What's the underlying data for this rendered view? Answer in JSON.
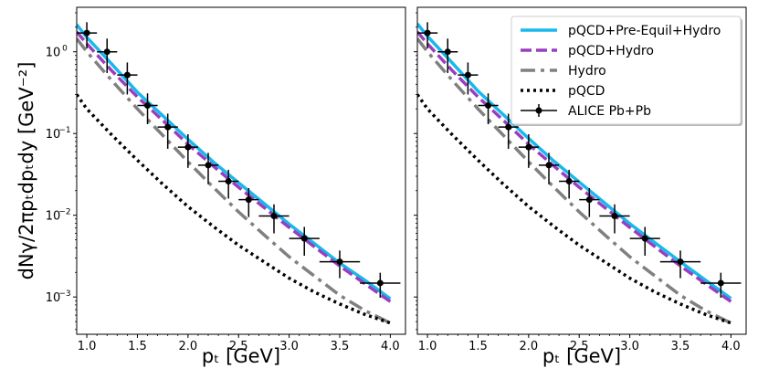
{
  "chart_data": {
    "type": "line",
    "yscale": "log",
    "ylabel": "dNγ/2πpₜdpₜdy [GeV⁻²]",
    "xlabel": "pₜ [GeV]",
    "xlim": [
      0.9,
      4.15
    ],
    "ylim": [
      0.00035,
      3.5
    ],
    "x_ticks": [
      1.0,
      1.5,
      2.0,
      2.5,
      3.0,
      3.5,
      4.0
    ],
    "x_tick_labels": [
      "1.0",
      "1.5",
      "2.0",
      "2.5",
      "3.0",
      "3.5",
      "4.0"
    ],
    "y_ticks": [
      {
        "value": 1,
        "base": "10",
        "exp": "0"
      },
      {
        "value": 0.1,
        "base": "10",
        "exp": "−1"
      },
      {
        "value": 0.01,
        "base": "10",
        "exp": "−2"
      },
      {
        "value": 0.001,
        "base": "10",
        "exp": "−3"
      }
    ],
    "legend_position": "top-right",
    "panels": [
      {
        "name": "left",
        "series": [
          {
            "name": "pQCD+Pre-Equil+Hydro",
            "style": "solid",
            "color": "#19b8ec",
            "x": [
              0.9,
              1.0,
              1.25,
              1.5,
              1.75,
              2.0,
              2.25,
              2.5,
              2.75,
              3.0,
              3.25,
              3.5,
              3.75,
              4.0
            ],
            "y": [
              2.15,
              1.5,
              0.7,
              0.32,
              0.165,
              0.085,
              0.045,
              0.025,
              0.014,
              0.0078,
              0.0045,
              0.0026,
              0.0016,
              0.00095
            ]
          },
          {
            "name": "pQCD+Hydro",
            "style": "dashed",
            "color": "#9a3ebf",
            "x": [
              0.9,
              1.0,
              1.25,
              1.5,
              1.75,
              2.0,
              2.25,
              2.5,
              2.75,
              3.0,
              3.25,
              3.5,
              3.75,
              4.0
            ],
            "y": [
              1.75,
              1.25,
              0.58,
              0.28,
              0.145,
              0.074,
              0.04,
              0.022,
              0.0125,
              0.0071,
              0.0041,
              0.0024,
              0.00145,
              0.00088
            ]
          },
          {
            "name": "Hydro",
            "style": "dashdot",
            "color": "#808080",
            "x": [
              0.9,
              1.0,
              1.25,
              1.5,
              1.75,
              2.0,
              2.25,
              2.5,
              2.75,
              3.0,
              3.25,
              3.5,
              3.75,
              4.0
            ],
            "y": [
              1.45,
              1.0,
              0.44,
              0.2,
              0.095,
              0.045,
              0.022,
              0.011,
              0.0058,
              0.0031,
              0.0018,
              0.00105,
              0.00068,
              0.00048
            ]
          },
          {
            "name": "pQCD",
            "style": "dotted",
            "color": "#000000",
            "x": [
              0.9,
              1.0,
              1.25,
              1.5,
              1.75,
              2.0,
              2.25,
              2.5,
              2.75,
              3.0,
              3.25,
              3.5,
              3.75,
              4.0
            ],
            "y": [
              0.3,
              0.2,
              0.095,
              0.047,
              0.024,
              0.0128,
              0.0073,
              0.0043,
              0.0027,
              0.0017,
              0.00115,
              0.00082,
              0.00061,
              0.00048
            ]
          }
        ],
        "points": {
          "name": "ALICE Pb+Pb",
          "x": [
            1.0,
            1.2,
            1.4,
            1.6,
            1.8,
            2.0,
            2.2,
            2.4,
            2.6,
            2.85,
            3.15,
            3.5,
            3.9
          ],
          "y": [
            1.7,
            1.0,
            0.52,
            0.22,
            0.12,
            0.068,
            0.041,
            0.026,
            0.0155,
            0.0098,
            0.0052,
            0.0027,
            0.00148
          ],
          "xerr": [
            0.1,
            0.1,
            0.1,
            0.1,
            0.1,
            0.1,
            0.1,
            0.1,
            0.1,
            0.15,
            0.15,
            0.2,
            0.2
          ],
          "yerr_low": [
            0.6,
            0.45,
            0.22,
            0.09,
            0.055,
            0.03,
            0.017,
            0.01,
            0.006,
            0.0038,
            0.002,
            0.001,
            0.0005
          ],
          "yerr_high": [
            0.6,
            0.45,
            0.22,
            0.09,
            0.055,
            0.03,
            0.017,
            0.01,
            0.006,
            0.0038,
            0.002,
            0.001,
            0.0005
          ]
        }
      },
      {
        "name": "right",
        "series": [
          {
            "name": "pQCD+Pre-Equil+Hydro",
            "style": "solid",
            "color": "#19b8ec",
            "x": [
              0.9,
              1.0,
              1.25,
              1.5,
              1.75,
              2.0,
              2.25,
              2.5,
              2.75,
              3.0,
              3.25,
              3.5,
              3.75,
              4.0
            ],
            "y": [
              2.2,
              1.55,
              0.72,
              0.33,
              0.17,
              0.087,
              0.046,
              0.0255,
              0.0142,
              0.0079,
              0.0046,
              0.0027,
              0.0016,
              0.00096
            ]
          },
          {
            "name": "pQCD+Hydro",
            "style": "dashed",
            "color": "#9a3ebf",
            "x": [
              0.9,
              1.0,
              1.25,
              1.5,
              1.75,
              2.0,
              2.25,
              2.5,
              2.75,
              3.0,
              3.25,
              3.5,
              3.75,
              4.0
            ],
            "y": [
              1.75,
              1.25,
              0.58,
              0.28,
              0.145,
              0.074,
              0.04,
              0.022,
              0.0125,
              0.0071,
              0.0041,
              0.0024,
              0.00145,
              0.00088
            ]
          },
          {
            "name": "Hydro",
            "style": "dashdot",
            "color": "#808080",
            "x": [
              0.9,
              1.0,
              1.25,
              1.5,
              1.75,
              2.0,
              2.25,
              2.5,
              2.75,
              3.0,
              3.25,
              3.5,
              3.75,
              4.0
            ],
            "y": [
              1.45,
              1.0,
              0.44,
              0.2,
              0.095,
              0.045,
              0.022,
              0.011,
              0.0058,
              0.0031,
              0.0018,
              0.00105,
              0.00068,
              0.00048
            ]
          },
          {
            "name": "pQCD",
            "style": "dotted",
            "color": "#000000",
            "x": [
              0.9,
              1.0,
              1.25,
              1.5,
              1.75,
              2.0,
              2.25,
              2.5,
              2.75,
              3.0,
              3.25,
              3.5,
              3.75,
              4.0
            ],
            "y": [
              0.3,
              0.2,
              0.095,
              0.047,
              0.024,
              0.0128,
              0.0073,
              0.0043,
              0.0027,
              0.0017,
              0.00115,
              0.00082,
              0.00061,
              0.00048
            ]
          }
        ],
        "points": {
          "name": "ALICE Pb+Pb",
          "x": [
            1.0,
            1.2,
            1.4,
            1.6,
            1.8,
            2.0,
            2.2,
            2.4,
            2.6,
            2.85,
            3.15,
            3.5,
            3.9
          ],
          "y": [
            1.7,
            1.0,
            0.52,
            0.22,
            0.12,
            0.068,
            0.041,
            0.026,
            0.0155,
            0.0098,
            0.0052,
            0.0027,
            0.00148
          ],
          "xerr": [
            0.1,
            0.1,
            0.1,
            0.1,
            0.1,
            0.1,
            0.1,
            0.1,
            0.1,
            0.15,
            0.15,
            0.2,
            0.2
          ],
          "yerr_low": [
            0.6,
            0.45,
            0.22,
            0.09,
            0.055,
            0.03,
            0.017,
            0.01,
            0.006,
            0.0038,
            0.002,
            0.001,
            0.0005
          ],
          "yerr_high": [
            0.6,
            0.45,
            0.22,
            0.09,
            0.055,
            0.03,
            0.017,
            0.01,
            0.006,
            0.0038,
            0.002,
            0.001,
            0.0005
          ]
        }
      }
    ],
    "legend": [
      {
        "label": "pQCD+Pre-Equil+Hydro",
        "style": "solid",
        "color": "#19b8ec"
      },
      {
        "label": "pQCD+Hydro",
        "style": "dashed",
        "color": "#9a3ebf"
      },
      {
        "label": "Hydro",
        "style": "dashdot",
        "color": "#808080"
      },
      {
        "label": "pQCD",
        "style": "dotted",
        "color": "#000000"
      },
      {
        "label": "ALICE Pb+Pb",
        "style": "errorbar",
        "color": "#000000"
      }
    ]
  }
}
